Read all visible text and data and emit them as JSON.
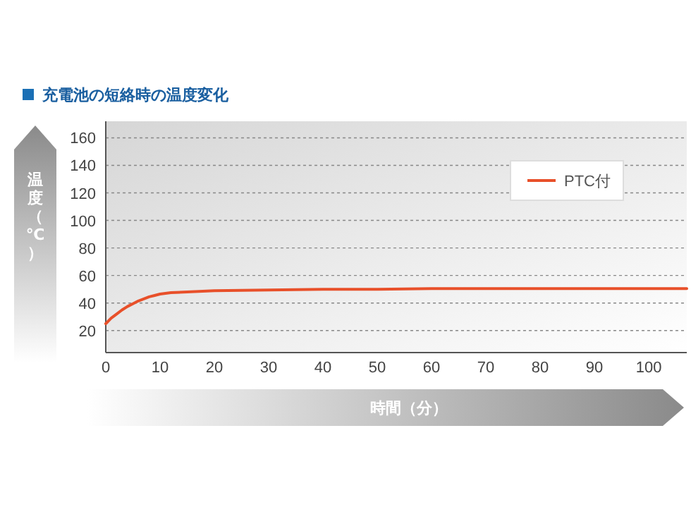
{
  "chart_data": {
    "type": "line",
    "title": "充電池の短絡時の温度変化",
    "xlabel": "時間（分）",
    "ylabel": "温度（℃）",
    "x": [
      0,
      1,
      2,
      3,
      4,
      5,
      6,
      7,
      8,
      9,
      10,
      12,
      15,
      20,
      30,
      40,
      50,
      60,
      70,
      80,
      90,
      100,
      107
    ],
    "series": [
      {
        "name": "PTC付",
        "color": "#e8502a",
        "values": [
          25,
          29,
          32,
          35,
          37.5,
          39.5,
          41.5,
          43,
          44.5,
          45.5,
          46.5,
          47.5,
          48,
          49,
          49.5,
          50,
          50,
          50.5,
          50.5,
          50.5,
          50.5,
          50.5,
          50.5
        ]
      }
    ],
    "xlim": [
      0,
      107
    ],
    "ylim": [
      4,
      172
    ],
    "xticks": [
      0,
      10,
      20,
      30,
      40,
      50,
      60,
      70,
      80,
      90,
      100
    ],
    "yticks": [
      20,
      40,
      60,
      80,
      100,
      120,
      140,
      160
    ],
    "grid": "y",
    "legend": "top right",
    "marker": "none",
    "line_style": "solid"
  }
}
